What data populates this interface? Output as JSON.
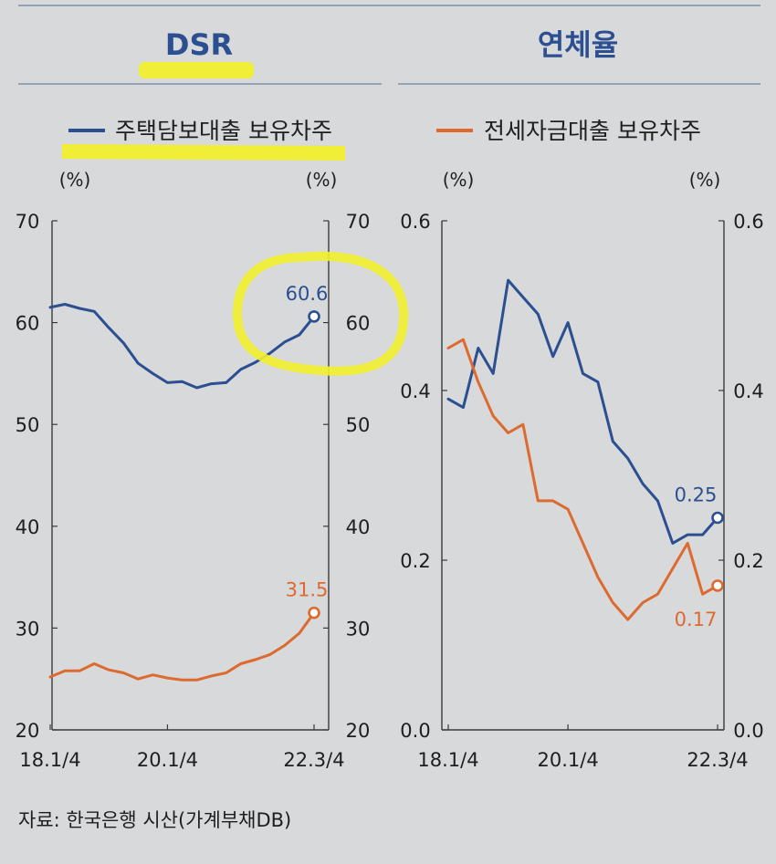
{
  "panels": {
    "left_title": "DSR",
    "right_title": "연체율"
  },
  "legend": {
    "left": "주택담보대출 보유차주",
    "right": "전세자금대출 보유차주"
  },
  "units": {
    "pct": "(%)"
  },
  "source": "자료: 한국은행 시산(가계부채DB)",
  "colors": {
    "mortgage": "#2b4f90",
    "jeonse": "#dd6a2f",
    "axis": "#3a3a3a",
    "title": "#2b4f90",
    "rule": "#7f8fa8",
    "highlight": "#f2ef2e",
    "background": "#d8d9db"
  },
  "chart_data": [
    {
      "type": "line",
      "title": "DSR",
      "x_tick_labels": [
        "18.1/4",
        "20.1/4",
        "22.3/4"
      ],
      "x_ticks_at_index": [
        0,
        8,
        18
      ],
      "ylim": [
        20,
        70
      ],
      "yticks": [
        "20",
        "30",
        "40",
        "50",
        "60",
        "70"
      ],
      "ylim_right": [
        20,
        70
      ],
      "series": [
        {
          "name": "주택담보대출 보유차주",
          "color": "#2b4f90",
          "values": [
            61.5,
            61.8,
            61.4,
            61.1,
            59.5,
            58.0,
            56.0,
            55.0,
            54.1,
            54.2,
            53.6,
            54.0,
            54.1,
            55.4,
            56.1,
            57.0,
            58.1,
            58.8,
            60.6
          ],
          "end_label": "60.6"
        },
        {
          "name": "전세자금대출 보유차주",
          "color": "#dd6a2f",
          "values": [
            25.2,
            25.8,
            25.8,
            26.5,
            25.9,
            25.6,
            25.0,
            25.4,
            25.1,
            24.9,
            24.9,
            25.3,
            25.6,
            26.5,
            26.9,
            27.4,
            28.3,
            29.5,
            31.5
          ],
          "end_label": "31.5"
        }
      ]
    },
    {
      "type": "line",
      "title": "연체율",
      "x_tick_labels": [
        "18.1/4",
        "20.1/4",
        "22.3/4"
      ],
      "x_ticks_at_index": [
        0,
        8,
        18
      ],
      "ylim": [
        0.0,
        0.6
      ],
      "yticks": [
        "0.0",
        "0.2",
        "0.4",
        "0.6"
      ],
      "ylim_right": [
        0.0,
        0.6
      ],
      "series": [
        {
          "name": "주택담보대출 보유차주",
          "color": "#2b4f90",
          "values": [
            0.39,
            0.38,
            0.45,
            0.42,
            0.53,
            0.51,
            0.49,
            0.44,
            0.48,
            0.42,
            0.41,
            0.34,
            0.32,
            0.29,
            0.27,
            0.22,
            0.23,
            0.23,
            0.25
          ],
          "end_label": "0.25"
        },
        {
          "name": "전세자금대출 보유차주",
          "color": "#dd6a2f",
          "values": [
            0.45,
            0.46,
            0.41,
            0.37,
            0.35,
            0.36,
            0.27,
            0.27,
            0.26,
            0.22,
            0.18,
            0.15,
            0.13,
            0.15,
            0.16,
            0.19,
            0.22,
            0.16,
            0.17
          ],
          "end_label": "0.17"
        }
      ]
    }
  ]
}
